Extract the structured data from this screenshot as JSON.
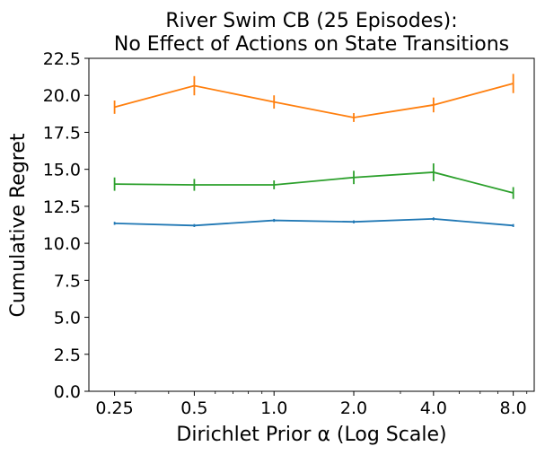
{
  "chart_data": {
    "type": "line",
    "title_lines": [
      "River Swim CB (25 Episodes):",
      "No Effect of Actions on State Transitions"
    ],
    "xlabel": "Dirichlet Prior α (Log Scale)",
    "ylabel": "Cumulative Regret",
    "x_scale": "log2",
    "x": [
      0.25,
      0.5,
      1.0,
      2.0,
      4.0,
      8.0
    ],
    "x_tick_labels": [
      "0.25",
      "0.5",
      "1.0",
      "2.0",
      "4.0",
      "8.0"
    ],
    "xlim": [
      0.2,
      9.6
    ],
    "y_ticks": [
      0.0,
      2.5,
      5.0,
      7.5,
      10.0,
      12.5,
      15.0,
      17.5,
      20.0,
      22.5
    ],
    "y_tick_labels": [
      "0.0",
      "2.5",
      "5.0",
      "7.5",
      "10.0",
      "12.5",
      "15.0",
      "17.5",
      "20.0",
      "22.5"
    ],
    "ylim": [
      0,
      22.5
    ],
    "grid": false,
    "legend": null,
    "series": [
      {
        "name": "series-orange",
        "color": "#ff7f0e",
        "values": [
          19.2,
          20.65,
          19.55,
          18.5,
          19.35,
          20.8
        ],
        "errors": [
          0.45,
          0.65,
          0.45,
          0.3,
          0.5,
          0.65
        ]
      },
      {
        "name": "series-green",
        "color": "#2ca02c",
        "values": [
          14.0,
          13.95,
          13.95,
          14.45,
          14.8,
          13.4
        ],
        "errors": [
          0.45,
          0.4,
          0.3,
          0.45,
          0.6,
          0.4
        ]
      },
      {
        "name": "series-blue",
        "color": "#1f77b4",
        "values": [
          11.35,
          11.2,
          11.55,
          11.45,
          11.65,
          11.2
        ],
        "errors": [
          0.1,
          0.1,
          0.1,
          0.1,
          0.1,
          0.1
        ]
      }
    ]
  }
}
